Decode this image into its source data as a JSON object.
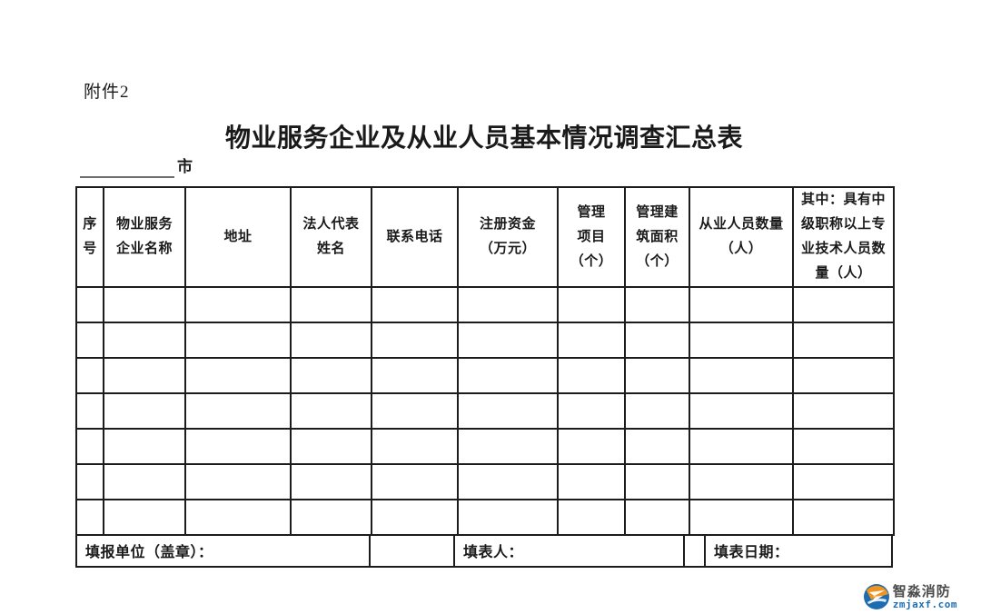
{
  "page": {
    "attachment_label": "附件2",
    "title": "物业服务企业及从业人员基本情况调查汇总表",
    "city_suffix": "市"
  },
  "table": {
    "headers": [
      "序\n号",
      "物业服务\n企业名称",
      "地址",
      "法人代表\n姓名",
      "联系电话",
      "注册资金\n（万元）",
      "管理\n项目\n（个）",
      "管理建\n筑面积\n（个）",
      "从业人员数量\n（人）",
      "其中：具有中\n级职称以上专\n业技术人员数\n量（人）"
    ],
    "empty_rows": 7,
    "footer": {
      "unit_label": "填报单位（盖章）：",
      "filler_label": "填表人：",
      "date_label": "填表日期："
    }
  },
  "watermark": {
    "icon": "zhimiao-swirl-logo-icon",
    "brand_name": "智淼消防",
    "brand_url": "zmjaxf.com",
    "orange": "#f0941f",
    "blue": "#1d6cb0",
    "name_color": "#4a4a4a",
    "url_color": "#1b6fb6"
  }
}
